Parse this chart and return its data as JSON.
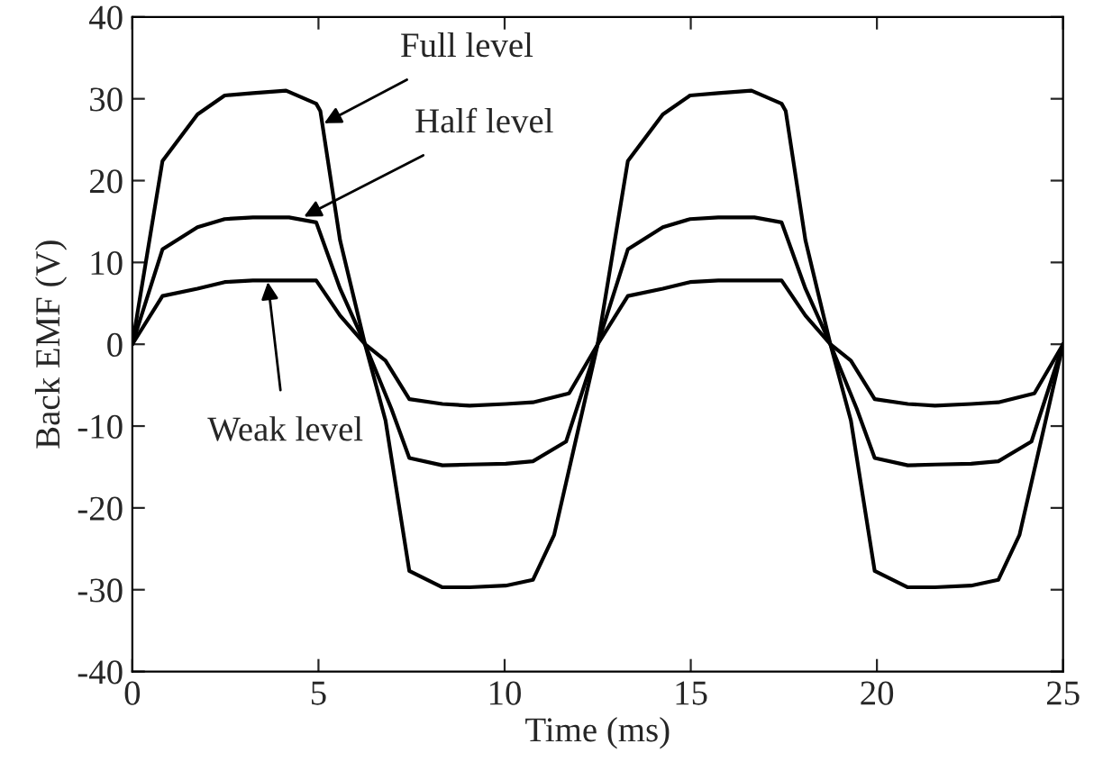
{
  "chart_data": {
    "type": "line",
    "xlabel": "Time (ms)",
    "ylabel": "Back EMF (V)",
    "xlim": [
      0,
      25
    ],
    "ylim": [
      -40,
      40
    ],
    "xticks": [
      0,
      5,
      10,
      15,
      20,
      25
    ],
    "yticks": [
      -40,
      -30,
      -20,
      -10,
      0,
      10,
      20,
      30,
      40
    ],
    "grid": false,
    "marker": "none",
    "line_style": "solid",
    "series": [
      {
        "color": "#000000",
        "x": [
          0,
          0.81,
          1.75,
          2.48,
          3.24,
          4.13,
          4.94,
          5.05,
          5.58,
          6.25,
          6.8,
          7.44,
          8.33,
          9.06,
          10.03,
          10.76,
          11.33,
          12.5,
          13.31,
          14.25,
          14.98,
          15.74,
          16.63,
          17.44,
          17.55,
          18.08,
          18.75,
          19.3,
          19.94,
          20.83,
          21.56,
          22.53,
          23.26,
          23.83,
          25
        ],
        "values": [
          0,
          22.4,
          28.1,
          30.4,
          30.7,
          31.0,
          29.4,
          28.5,
          12.7,
          0,
          -9.3,
          -27.7,
          -29.7,
          -29.7,
          -29.5,
          -28.8,
          -23.3,
          0,
          22.4,
          28.1,
          30.4,
          30.7,
          31.0,
          29.4,
          28.5,
          12.7,
          0,
          -9.3,
          -27.7,
          -29.7,
          -29.7,
          -29.5,
          -28.8,
          -23.3,
          0
        ]
      },
      {
        "color": "#000000",
        "x": [
          0,
          0.81,
          1.75,
          2.48,
          3.24,
          4.21,
          4.94,
          5.58,
          6.25,
          6.96,
          7.44,
          8.33,
          9.06,
          10.03,
          10.76,
          11.65,
          12.5,
          13.31,
          14.25,
          14.98,
          15.74,
          16.71,
          17.44,
          18.08,
          18.75,
          19.46,
          19.94,
          20.83,
          21.56,
          22.53,
          23.26,
          24.15,
          25
        ],
        "values": [
          0,
          11.6,
          14.3,
          15.3,
          15.5,
          15.5,
          14.9,
          6.8,
          0,
          -7.9,
          -13.9,
          -14.8,
          -14.7,
          -14.6,
          -14.3,
          -11.9,
          0,
          11.6,
          14.3,
          15.3,
          15.5,
          15.5,
          14.9,
          6.8,
          0,
          -7.9,
          -13.9,
          -14.8,
          -14.7,
          -14.6,
          -14.3,
          -11.9,
          0
        ]
      },
      {
        "color": "#000000",
        "x": [
          0,
          0.81,
          1.75,
          2.48,
          3.24,
          4.94,
          5.58,
          6.25,
          6.8,
          7.44,
          8.33,
          9.06,
          10.03,
          10.76,
          11.73,
          12.5,
          13.31,
          14.25,
          14.98,
          15.74,
          17.44,
          18.08,
          18.75,
          19.3,
          19.94,
          20.83,
          21.56,
          22.53,
          23.26,
          24.23,
          25
        ],
        "values": [
          0,
          5.9,
          6.8,
          7.6,
          7.8,
          7.8,
          3.5,
          0,
          -2.0,
          -6.7,
          -7.3,
          -7.5,
          -7.3,
          -7.1,
          -6.0,
          0,
          5.9,
          6.8,
          7.6,
          7.8,
          7.8,
          3.5,
          0,
          -2.0,
          -6.7,
          -7.3,
          -7.5,
          -7.3,
          -7.1,
          -6.0,
          0
        ]
      }
    ],
    "annotations": [
      {
        "text": "Full level",
        "x": 5.15,
        "y": 27
      },
      {
        "text": "Half level",
        "x": 4.61,
        "y": 15.6
      },
      {
        "text": "Weak level",
        "x": 3.64,
        "y": 7.6
      }
    ]
  }
}
